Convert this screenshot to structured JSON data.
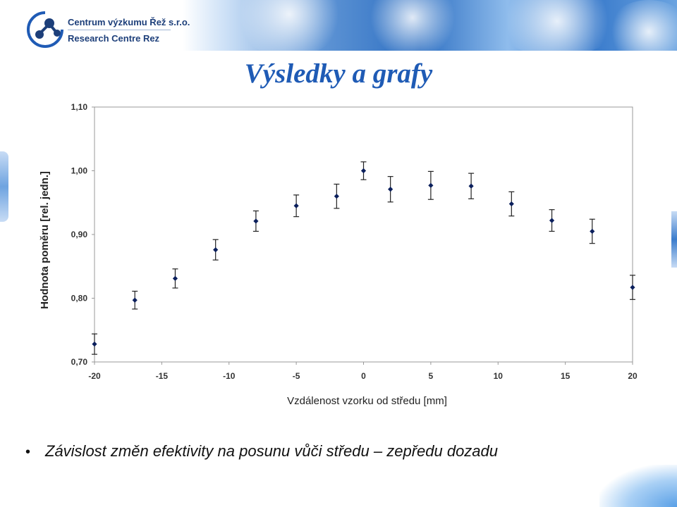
{
  "header": {
    "org_name_cz": "Centrum výzkumu Řež s.r.o.",
    "org_name_en": "Research Centre Rez",
    "logo_icon": "molecule-logo-icon",
    "colors": {
      "brand": "#1d3f7a",
      "accent": "#1f5bb5"
    }
  },
  "slide": {
    "title": "Výsledky a grafy",
    "bullet_text": "Závislost změn efektivity na posunu vůči středu – zepředu dozadu"
  },
  "chart_data": {
    "type": "scatter",
    "title": "",
    "xlabel": "Vzdálenost vzorku od středu [mm]",
    "ylabel": "Hodnota poměru [rel. jedn.]",
    "xlim": [
      -20,
      20
    ],
    "ylim": [
      0.7,
      1.1
    ],
    "x_ticks": [
      "-20",
      "-15",
      "-10",
      "-5",
      "0",
      "5",
      "10",
      "15",
      "20"
    ],
    "y_ticks": [
      "0,70",
      "0,80",
      "0,90",
      "1,00",
      "1,10"
    ],
    "grid": false,
    "legend": "none",
    "marker_color": "#0b1f5c",
    "points": [
      {
        "x": -20,
        "y": 0.728,
        "err": 0.016
      },
      {
        "x": -17,
        "y": 0.797,
        "err": 0.014
      },
      {
        "x": -14,
        "y": 0.831,
        "err": 0.015
      },
      {
        "x": -11,
        "y": 0.876,
        "err": 0.016
      },
      {
        "x": -8,
        "y": 0.921,
        "err": 0.016
      },
      {
        "x": -5,
        "y": 0.945,
        "err": 0.017
      },
      {
        "x": -2,
        "y": 0.96,
        "err": 0.019
      },
      {
        "x": 0,
        "y": 1.0,
        "err": 0.014
      },
      {
        "x": 2,
        "y": 0.971,
        "err": 0.02
      },
      {
        "x": 5,
        "y": 0.977,
        "err": 0.022
      },
      {
        "x": 8,
        "y": 0.976,
        "err": 0.02
      },
      {
        "x": 11,
        "y": 0.948,
        "err": 0.019
      },
      {
        "x": 14,
        "y": 0.922,
        "err": 0.017
      },
      {
        "x": 17,
        "y": 0.905,
        "err": 0.019
      },
      {
        "x": 20,
        "y": 0.817,
        "err": 0.019
      }
    ]
  }
}
